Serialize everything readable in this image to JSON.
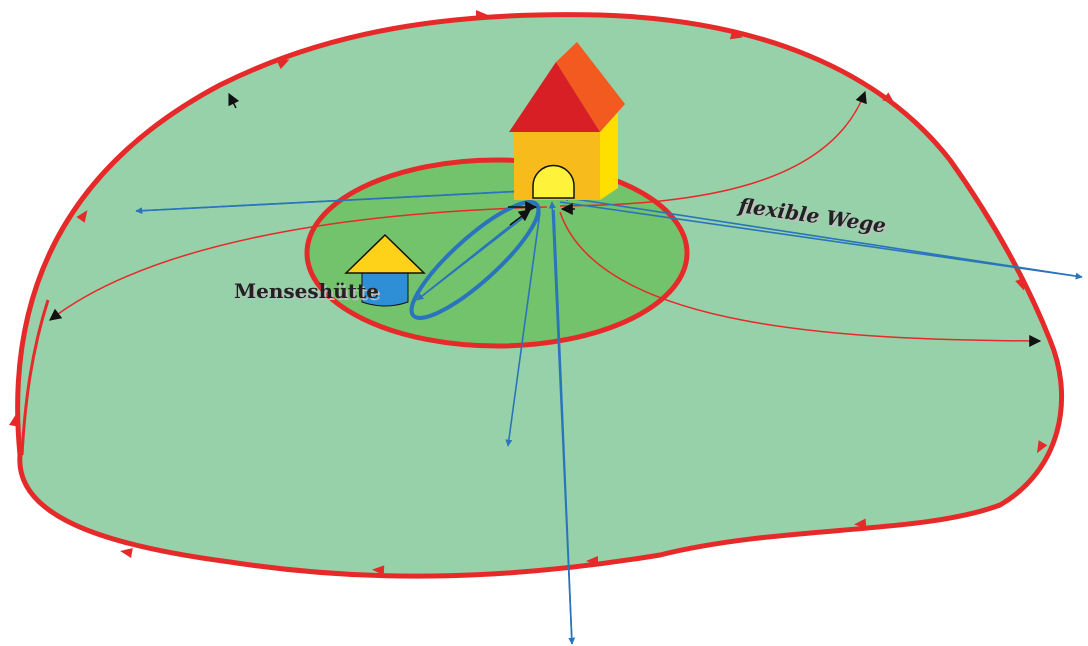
{
  "labels": {
    "hut": "Menseshütte",
    "paths": "flexible Wege"
  },
  "colors": {
    "territory_fill": "#96d1a9",
    "inner_zone_fill": "#72c36c",
    "boundary_red": "#e62a2a",
    "path_blue": "#2a74bb",
    "hut_roof": "#ffd21a",
    "hut_body": "#2e8fd6",
    "house_wall_front": "#f7bb1b",
    "house_wall_side": "#ffdf00",
    "house_roof_front": "#d91f26",
    "house_roof_side": "#f25a20",
    "door_yellow": "#fff23a",
    "arrow_black": "#111111"
  }
}
